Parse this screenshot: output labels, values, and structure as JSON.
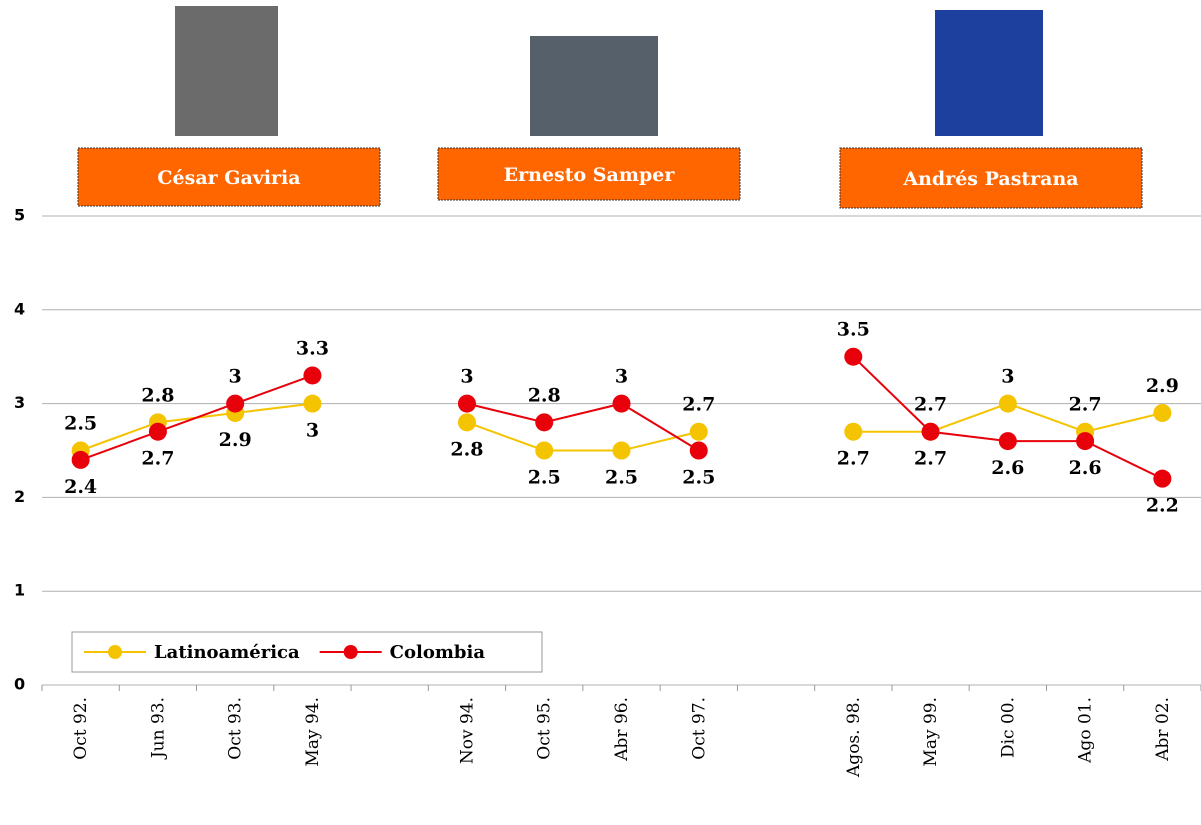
{
  "chart_data": {
    "type": "line",
    "categories": [
      "Oct 92.",
      "Jun 93.",
      "Oct 93.",
      "May 94.",
      null,
      "Nov 94.",
      "Oct 95.",
      "Abr 96.",
      "Oct 97.",
      null,
      "Agos. 98.",
      "May 99.",
      "Dic 00.",
      "Ago 01.",
      "Abr 02."
    ],
    "series": [
      {
        "name": "Latinoamérica",
        "color": "#f5c400",
        "values": [
          2.5,
          2.8,
          2.9,
          3,
          null,
          2.8,
          2.5,
          2.5,
          2.7,
          null,
          2.7,
          2.7,
          3,
          2.7,
          2.9
        ]
      },
      {
        "name": "Colombia",
        "color": "#e8000b",
        "values": [
          2.4,
          2.7,
          3,
          3.3,
          null,
          3,
          2.8,
          3,
          2.5,
          null,
          3.5,
          2.7,
          2.6,
          2.6,
          2.2
        ]
      }
    ],
    "annotations": [
      "César Gaviria",
      "Ernesto Samper",
      "Andrés Pastrana"
    ],
    "ylim": [
      0,
      5
    ],
    "yticks": [
      0,
      1,
      2,
      3,
      4,
      5
    ],
    "grid": true,
    "legend": "lower left"
  }
}
